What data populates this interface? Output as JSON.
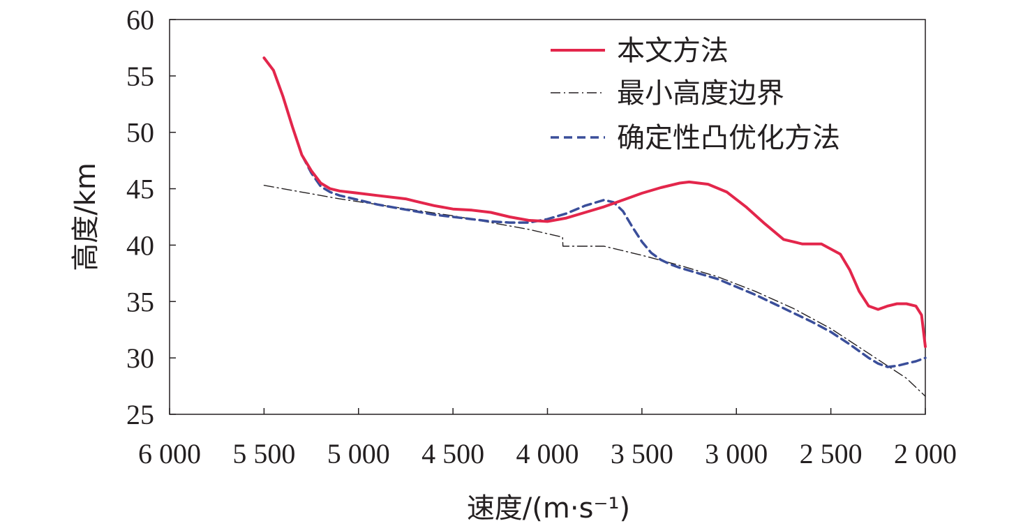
{
  "chart_data": {
    "type": "line",
    "title": "",
    "xlabel": "速度/(m·s⁻¹)",
    "ylabel": "高度/km",
    "xlim": [
      6000,
      2000
    ],
    "ylim": [
      25,
      60
    ],
    "x_reversed": true,
    "grid": false,
    "legend_position": "top-right",
    "x_ticks": [
      6000,
      5500,
      5000,
      4500,
      4000,
      3500,
      3000,
      2500,
      2000
    ],
    "x_tick_labels": [
      "6 000",
      "5 500",
      "5 000",
      "4 500",
      "4 000",
      "3 500",
      "3 000",
      "2 500",
      "2 000"
    ],
    "y_ticks": [
      25,
      30,
      35,
      40,
      45,
      50,
      55,
      60
    ],
    "y_tick_labels": [
      "25",
      "30",
      "35",
      "40",
      "45",
      "50",
      "55",
      "60"
    ],
    "series": [
      {
        "name": "本文方法",
        "color": "#e3264b",
        "style": "solid",
        "points": [
          [
            5500,
            56.6
          ],
          [
            5450,
            55.5
          ],
          [
            5400,
            53.2
          ],
          [
            5350,
            50.5
          ],
          [
            5300,
            48.0
          ],
          [
            5250,
            46.6
          ],
          [
            5200,
            45.5
          ],
          [
            5150,
            45.0
          ],
          [
            5100,
            44.8
          ],
          [
            5000,
            44.6
          ],
          [
            4900,
            44.4
          ],
          [
            4800,
            44.2
          ],
          [
            4750,
            44.1
          ],
          [
            4700,
            43.9
          ],
          [
            4600,
            43.5
          ],
          [
            4500,
            43.2
          ],
          [
            4400,
            43.1
          ],
          [
            4300,
            42.9
          ],
          [
            4200,
            42.5
          ],
          [
            4100,
            42.2
          ],
          [
            4000,
            42.1
          ],
          [
            3900,
            42.4
          ],
          [
            3800,
            42.9
          ],
          [
            3700,
            43.4
          ],
          [
            3600,
            44.0
          ],
          [
            3500,
            44.6
          ],
          [
            3400,
            45.1
          ],
          [
            3300,
            45.5
          ],
          [
            3250,
            45.6
          ],
          [
            3150,
            45.4
          ],
          [
            3050,
            44.7
          ],
          [
            2950,
            43.4
          ],
          [
            2850,
            41.9
          ],
          [
            2750,
            40.5
          ],
          [
            2650,
            40.1
          ],
          [
            2550,
            40.1
          ],
          [
            2450,
            39.2
          ],
          [
            2400,
            37.8
          ],
          [
            2350,
            35.9
          ],
          [
            2300,
            34.6
          ],
          [
            2250,
            34.3
          ],
          [
            2200,
            34.6
          ],
          [
            2150,
            34.8
          ],
          [
            2100,
            34.8
          ],
          [
            2050,
            34.6
          ],
          [
            2020,
            33.8
          ],
          [
            2000,
            31.0
          ]
        ]
      },
      {
        "name": "最小高度边界",
        "color": "#231f20",
        "style": "dashdot",
        "points": [
          [
            5500,
            45.3
          ],
          [
            5300,
            44.7
          ],
          [
            5100,
            44.1
          ],
          [
            4900,
            43.6
          ],
          [
            4700,
            43.1
          ],
          [
            4500,
            42.6
          ],
          [
            4300,
            42.0
          ],
          [
            4100,
            41.4
          ],
          [
            3920,
            40.7
          ],
          [
            3918,
            39.9
          ],
          [
            3700,
            39.9
          ],
          [
            3500,
            39.1
          ],
          [
            3300,
            38.2
          ],
          [
            3100,
            37.2
          ],
          [
            2900,
            35.9
          ],
          [
            2700,
            34.4
          ],
          [
            2500,
            32.6
          ],
          [
            2300,
            30.4
          ],
          [
            2100,
            28.2
          ],
          [
            2000,
            26.6
          ]
        ]
      },
      {
        "name": "确定性凸优化方法",
        "color": "#3a4e9a",
        "style": "dashed",
        "points": [
          [
            5500,
            56.6
          ],
          [
            5450,
            55.5
          ],
          [
            5400,
            53.2
          ],
          [
            5350,
            50.5
          ],
          [
            5300,
            48.0
          ],
          [
            5250,
            46.4
          ],
          [
            5200,
            45.2
          ],
          [
            5150,
            44.7
          ],
          [
            5100,
            44.4
          ],
          [
            5000,
            44.0
          ],
          [
            4900,
            43.6
          ],
          [
            4800,
            43.3
          ],
          [
            4700,
            43.0
          ],
          [
            4600,
            42.7
          ],
          [
            4500,
            42.5
          ],
          [
            4400,
            42.3
          ],
          [
            4300,
            42.1
          ],
          [
            4200,
            42.0
          ],
          [
            4100,
            42.0
          ],
          [
            4000,
            42.3
          ],
          [
            3900,
            42.8
          ],
          [
            3800,
            43.5
          ],
          [
            3700,
            44.0
          ],
          [
            3650,
            43.8
          ],
          [
            3600,
            43.0
          ],
          [
            3550,
            41.6
          ],
          [
            3500,
            40.3
          ],
          [
            3450,
            39.3
          ],
          [
            3400,
            38.7
          ],
          [
            3350,
            38.3
          ],
          [
            3300,
            38.0
          ],
          [
            3200,
            37.5
          ],
          [
            3100,
            37.0
          ],
          [
            3000,
            36.3
          ],
          [
            2900,
            35.6
          ],
          [
            2800,
            34.8
          ],
          [
            2700,
            34.0
          ],
          [
            2600,
            33.2
          ],
          [
            2500,
            32.3
          ],
          [
            2400,
            31.2
          ],
          [
            2300,
            30.0
          ],
          [
            2250,
            29.5
          ],
          [
            2200,
            29.2
          ],
          [
            2150,
            29.3
          ],
          [
            2100,
            29.5
          ],
          [
            2050,
            29.7
          ],
          [
            2000,
            30.0
          ]
        ]
      }
    ]
  }
}
